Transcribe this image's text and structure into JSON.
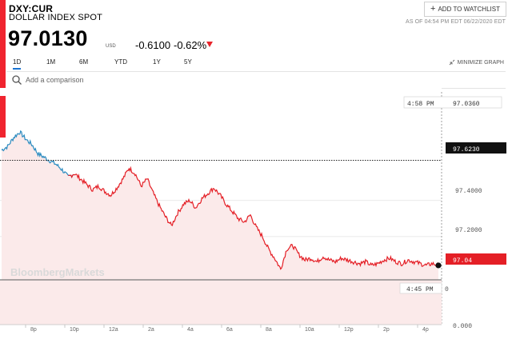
{
  "header": {
    "ticker": "DXY:CUR",
    "name": "DOLLAR INDEX SPOT",
    "watchlist_label": "ADD TO WATCHLIST",
    "as_of": "AS OF 04:54 PM EDT 06/22/2020 EDT"
  },
  "quote": {
    "price": "97.0130",
    "currency": "USD",
    "change": "-0.6100",
    "change_pct": "-0.62%"
  },
  "tabs": [
    "1D",
    "1M",
    "6M",
    "YTD",
    "1Y",
    "5Y"
  ],
  "active_tab": "1D",
  "minimize_label": "MINIMIZE GRAPH",
  "compare": {
    "placeholder": "Add a comparison"
  },
  "colors": {
    "accent": "#f0242f",
    "line": "#e41f26",
    "fill": "#fbeaea",
    "prior_line": "#2a8bc0",
    "tab_underline": "#1a74d2"
  },
  "chart_data": {
    "type": "line",
    "watermark": "BloombergMarkets",
    "hover_label": "4:58 PM",
    "hover_value": "97.0360",
    "prev_close_label": "97.6230",
    "last_label": "97.04",
    "volume_time_label": "4:45 PM",
    "volume_value_label": "0",
    "y_tick_labels": [
      "97.4000",
      "97.2000",
      "0.000"
    ],
    "x_tick_labels": [
      "8p",
      "10p",
      "12a",
      "2a",
      "4a",
      "6a",
      "8a",
      "10a",
      "12p",
      "2p",
      "4p"
    ],
    "ylim": [
      96.96,
      97.98
    ],
    "prev_close": 97.623,
    "x": [
      0,
      1,
      2,
      3,
      4,
      5,
      6,
      7,
      8,
      9,
      10,
      11,
      12,
      13,
      14,
      15,
      16,
      17,
      18,
      19,
      20,
      21,
      22,
      23,
      24,
      25,
      26,
      27,
      28,
      29,
      30,
      31,
      32,
      33,
      34,
      35,
      36,
      37,
      38,
      39,
      40,
      41,
      42,
      43,
      44,
      45,
      46,
      47,
      48,
      49,
      50,
      51,
      52,
      53,
      54,
      55,
      56,
      57,
      58,
      59,
      60,
      61,
      62,
      63,
      64,
      65,
      66,
      67,
      68,
      69,
      70,
      71,
      72
    ],
    "y": [
      97.68,
      97.7,
      97.75,
      97.78,
      97.74,
      97.71,
      97.66,
      97.64,
      97.62,
      97.6,
      97.57,
      97.53,
      97.55,
      97.52,
      97.49,
      97.46,
      97.48,
      97.45,
      97.43,
      97.47,
      97.52,
      97.58,
      97.55,
      97.48,
      97.52,
      97.44,
      97.37,
      97.31,
      97.26,
      97.33,
      97.38,
      97.4,
      97.36,
      97.41,
      97.44,
      97.47,
      97.43,
      97.38,
      97.34,
      97.3,
      97.28,
      97.32,
      97.25,
      97.2,
      97.13,
      97.08,
      97.02,
      97.13,
      97.15,
      97.1,
      97.07,
      97.08,
      97.06,
      97.09,
      97.07,
      97.06,
      97.08,
      97.07,
      97.06,
      97.05,
      97.06,
      97.04,
      97.05,
      97.07,
      97.08,
      97.06,
      97.05,
      97.07,
      97.06,
      97.05,
      97.04,
      97.05,
      97.04
    ],
    "prior_segment_end_index": 12
  }
}
